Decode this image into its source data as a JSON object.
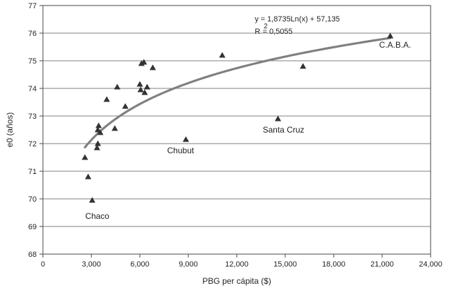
{
  "chart_data": {
    "type": "scatter",
    "xlabel": "PBG per cápita ($)",
    "ylabel": "e0 (años)",
    "xlim": [
      0,
      24000
    ],
    "ylim": [
      68,
      77
    ],
    "xticks": [
      0,
      3000,
      6000,
      9000,
      12000,
      15000,
      18000,
      21000,
      24000
    ],
    "xtick_labels": [
      "0",
      "3,000",
      "6,000",
      "9,000",
      "12,000",
      "15,000",
      "18,000",
      "21,000",
      "24,000"
    ],
    "yticks": [
      68,
      69,
      70,
      71,
      72,
      73,
      74,
      75,
      76,
      77
    ],
    "ytick_labels": [
      "68",
      "69",
      "70",
      "71",
      "72",
      "73",
      "74",
      "75",
      "76",
      "77"
    ],
    "grid": "horizontal",
    "marker": "triangle",
    "marker_color": "#333333",
    "series": [
      {
        "points": [
          {
            "x": 2600,
            "y": 71.5
          },
          {
            "x": 2800,
            "y": 70.8
          },
          {
            "x": 3050,
            "y": 69.95
          },
          {
            "x": 3350,
            "y": 71.85
          },
          {
            "x": 3400,
            "y": 72.0
          },
          {
            "x": 3400,
            "y": 72.5
          },
          {
            "x": 3450,
            "y": 72.65
          },
          {
            "x": 3550,
            "y": 72.4
          },
          {
            "x": 3950,
            "y": 73.6
          },
          {
            "x": 4450,
            "y": 72.55
          },
          {
            "x": 4600,
            "y": 74.05
          },
          {
            "x": 5100,
            "y": 73.35
          },
          {
            "x": 6000,
            "y": 74.15
          },
          {
            "x": 6050,
            "y": 73.95
          },
          {
            "x": 6100,
            "y": 74.9
          },
          {
            "x": 6250,
            "y": 74.95
          },
          {
            "x": 6300,
            "y": 73.85
          },
          {
            "x": 6450,
            "y": 74.05
          },
          {
            "x": 6800,
            "y": 74.75
          },
          {
            "x": 8850,
            "y": 72.15
          },
          {
            "x": 11100,
            "y": 75.2
          },
          {
            "x": 14550,
            "y": 72.9
          },
          {
            "x": 16100,
            "y": 74.8
          },
          {
            "x": 21500,
            "y": 75.9
          }
        ]
      }
    ],
    "trendline": {
      "type": "logarithmic",
      "a": 1.8735,
      "b": 57.135,
      "x_range": [
        2600,
        21500
      ],
      "color": "#808080"
    },
    "equation_text": "y = 1,8735Ln(x) + 57,135",
    "r2_label": "R",
    "r2_exponent": "2",
    "r2_value_text": "= 0,5055",
    "annotations": [
      {
        "text": "Chaco",
        "x": 3050,
        "y": 69.95
      },
      {
        "text": "Chubut",
        "x": 8850,
        "y": 72.15
      },
      {
        "text": "Santa Cruz",
        "x": 14550,
        "y": 72.9
      },
      {
        "text": "C.A.B.A.",
        "x": 21500,
        "y": 75.9
      }
    ]
  }
}
